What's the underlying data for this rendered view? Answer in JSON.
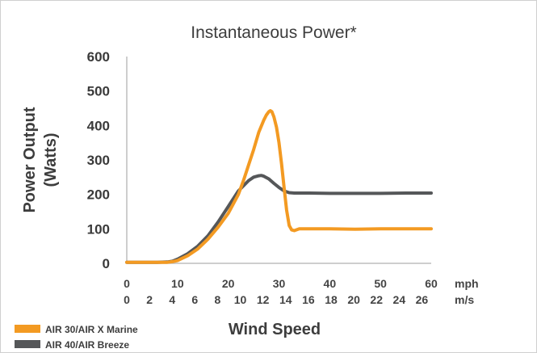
{
  "chart_data": {
    "type": "line",
    "title": "Instantaneous Power*",
    "xlabel": "Wind Speed",
    "ylabel_line1": "Power Output",
    "ylabel_line2": "(Watts)",
    "ylim": [
      0,
      600
    ],
    "xlim": [
      0,
      60
    ],
    "grid": false,
    "yticks": [
      0,
      100,
      200,
      300,
      400,
      500,
      600
    ],
    "xaxes": [
      {
        "unit": "mph",
        "ticks": [
          0,
          10,
          20,
          30,
          40,
          50,
          60
        ]
      },
      {
        "unit": "m/s",
        "ticks": [
          0,
          2,
          4,
          6,
          8,
          10,
          12,
          14,
          16,
          18,
          20,
          22,
          24,
          26
        ]
      }
    ],
    "legend_position": "bottom-left",
    "series": [
      {
        "name": "AIR 30/AIR X Marine",
        "color": "#f39a22",
        "x": [
          0,
          6,
          8,
          9,
          10,
          12,
          14,
          16,
          18,
          20,
          22,
          23,
          24,
          25,
          26,
          27,
          27.5,
          28,
          28.3,
          28.6,
          29,
          29.5,
          30,
          30.5,
          31,
          31.5,
          32,
          32.5,
          33,
          34,
          36,
          40,
          45,
          50,
          55,
          60
        ],
        "y": [
          3,
          3,
          3,
          5,
          8,
          22,
          42,
          70,
          105,
          145,
          200,
          240,
          285,
          330,
          380,
          415,
          430,
          440,
          443,
          440,
          425,
          395,
          350,
          290,
          220,
          155,
          110,
          97,
          95,
          100,
          100,
          100,
          99,
          100,
          100,
          100
        ]
      },
      {
        "name": "AIR 40/AIR Breeze",
        "color": "#555759",
        "x": [
          0,
          6,
          8,
          9,
          10,
          12,
          14,
          16,
          18,
          20,
          22,
          24,
          25,
          26,
          26.5,
          27,
          28,
          29,
          30,
          31,
          32,
          33,
          34,
          36,
          40,
          45,
          50,
          55,
          60
        ],
        "y": [
          3,
          3,
          4,
          6,
          12,
          28,
          50,
          80,
          120,
          165,
          210,
          240,
          250,
          254,
          255,
          253,
          245,
          232,
          220,
          210,
          205,
          204,
          204,
          204,
          203,
          203,
          203,
          204,
          204
        ]
      }
    ]
  }
}
